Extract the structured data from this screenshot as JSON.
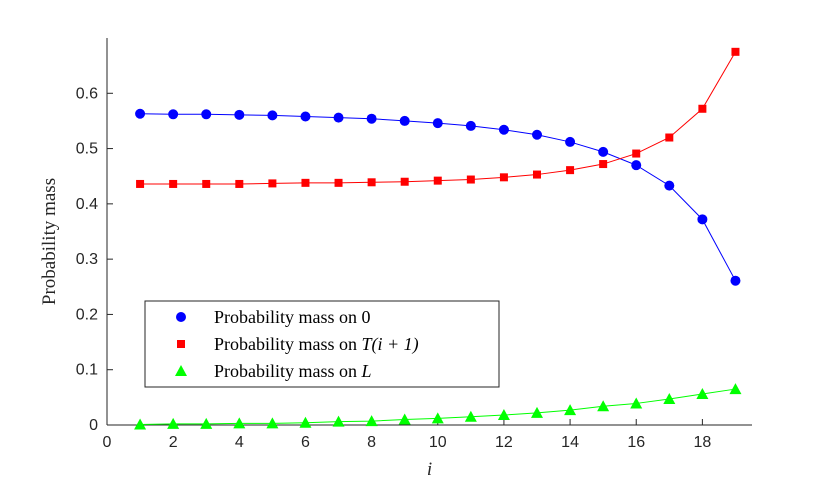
{
  "chart_data": {
    "type": "line",
    "title": "",
    "xlabel": "i",
    "ylabel": "Probability mass",
    "xlim": [
      0,
      19.5
    ],
    "ylim": [
      0,
      0.7
    ],
    "xticks": [
      0,
      2,
      4,
      6,
      8,
      10,
      12,
      14,
      16,
      18
    ],
    "yticks": [
      0,
      0.1,
      0.2,
      0.3,
      0.4,
      0.5,
      0.6
    ],
    "grid": false,
    "legend_position": "bottom-left",
    "x": [
      1,
      2,
      3,
      4,
      5,
      6,
      7,
      8,
      9,
      10,
      11,
      12,
      13,
      14,
      15,
      16,
      17,
      18,
      19
    ],
    "series": [
      {
        "name": "Probability mass on 0",
        "legend_prefix": "Probability mass on ",
        "legend_math": "0",
        "color": "#0000ff",
        "marker": "circle",
        "values": [
          0.563,
          0.562,
          0.562,
          0.561,
          0.56,
          0.558,
          0.556,
          0.554,
          0.55,
          0.546,
          0.541,
          0.534,
          0.525,
          0.512,
          0.494,
          0.47,
          0.433,
          0.372,
          0.261
        ]
      },
      {
        "name": "Probability mass on T(i+1)",
        "legend_prefix": "Probability mass on ",
        "legend_math": "T(i + 1)",
        "color": "#ff0000",
        "marker": "square",
        "values": [
          0.436,
          0.436,
          0.436,
          0.436,
          0.437,
          0.438,
          0.438,
          0.439,
          0.44,
          0.442,
          0.444,
          0.448,
          0.453,
          0.461,
          0.472,
          0.491,
          0.52,
          0.572,
          0.675
        ]
      },
      {
        "name": "Probability mass on L",
        "legend_prefix": "Probability mass on ",
        "legend_math": "L",
        "color": "#00ff00",
        "marker": "triangle",
        "values": [
          0.001,
          0.002,
          0.002,
          0.003,
          0.003,
          0.004,
          0.006,
          0.007,
          0.01,
          0.012,
          0.015,
          0.018,
          0.022,
          0.027,
          0.034,
          0.039,
          0.047,
          0.056,
          0.065
        ]
      }
    ]
  }
}
